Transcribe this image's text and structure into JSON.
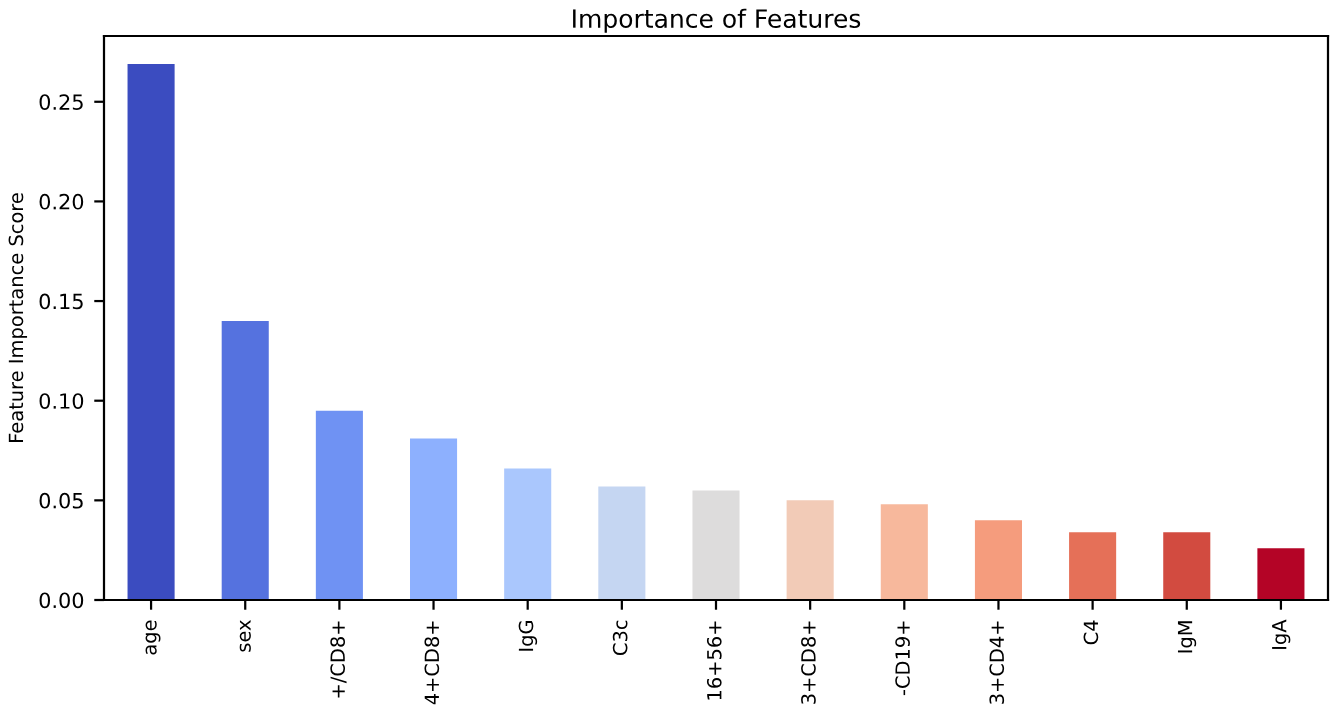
{
  "chart_data": {
    "type": "bar",
    "title": "Importance of Features",
    "ylabel": "Feature Importance Score",
    "categories": [
      "age",
      "sex",
      "+/CD8+",
      "4+CD8+",
      "IgG",
      "C3c",
      "16+56+",
      "3+CD8+",
      "-CD19+",
      "3+CD4+",
      "C4",
      "IgM",
      "IgA"
    ],
    "values": [
      0.269,
      0.14,
      0.095,
      0.081,
      0.066,
      0.057,
      0.055,
      0.05,
      0.048,
      0.04,
      0.034,
      0.034,
      0.026
    ],
    "colors": [
      "#3b4cc0",
      "#5572df",
      "#6f92f3",
      "#8db0fe",
      "#aac7fd",
      "#c5d6f2",
      "#dddcdc",
      "#f2cbb7",
      "#f7b89c",
      "#f59c7d",
      "#e57058",
      "#d24b40",
      "#b40426"
    ],
    "ylim": [
      0,
      0.283
    ],
    "yticks": [
      {
        "value": 0,
        "label": "0.00"
      },
      {
        "value": 0.05,
        "label": "0.05"
      },
      {
        "value": 0.1,
        "label": "0.10"
      },
      {
        "value": 0.15,
        "label": "0.15"
      },
      {
        "value": 0.2,
        "label": "0.20"
      },
      {
        "value": 0.25,
        "label": "0.25"
      }
    ],
    "grid": false,
    "legend": false
  }
}
